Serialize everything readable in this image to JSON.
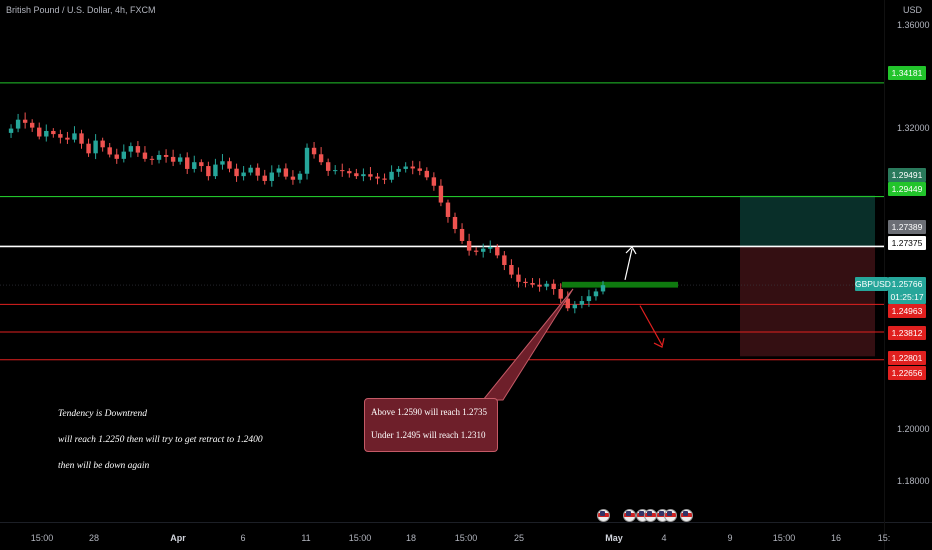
{
  "header": {
    "title": "British Pound / U.S. Dollar, 4h, FXCM"
  },
  "price_axis": {
    "currency": "USD",
    "ticks": [
      "1.36000",
      "1.32000",
      "1.20000",
      "1.18000"
    ]
  },
  "time_axis": {
    "ticks": [
      {
        "label": "15:00",
        "bold": false
      },
      {
        "label": "28",
        "bold": false
      },
      {
        "label": "Apr",
        "bold": true
      },
      {
        "label": "6",
        "bold": false
      },
      {
        "label": "11",
        "bold": false
      },
      {
        "label": "15:00",
        "bold": false
      },
      {
        "label": "18",
        "bold": false
      },
      {
        "label": "15:00",
        "bold": false
      },
      {
        "label": "25",
        "bold": false
      },
      {
        "label": "May",
        "bold": true
      },
      {
        "label": "4",
        "bold": false
      },
      {
        "label": "9",
        "bold": false
      },
      {
        "label": "15:00",
        "bold": false
      },
      {
        "label": "16",
        "bold": false
      },
      {
        "label": "15:",
        "bold": false
      }
    ]
  },
  "price_labels": [
    {
      "text": "1.34181",
      "color": "#22c42b"
    },
    {
      "text": "1.29491",
      "color": "#2a7a5c"
    },
    {
      "text": "1.29449",
      "color": "#22c42b"
    },
    {
      "text": "1.27389",
      "color": "#6b6e75"
    },
    {
      "text": "1.27375",
      "color": "#ffffff"
    },
    {
      "text": "1.25766",
      "color": "#26a69a"
    },
    {
      "text": "01:25:17",
      "color": "#26a69a"
    },
    {
      "text": "1.24963",
      "color": "#e0201f"
    },
    {
      "text": "1.23812",
      "color": "#e0201f"
    },
    {
      "text": "1.22801",
      "color": "#e0201f"
    },
    {
      "text": "1.22656",
      "color": "#e0201f"
    }
  ],
  "symbol_label": "GBPUSD",
  "callout": {
    "line1": "Above 1.2590 will reach 1.2735",
    "line2": "Under 1.2495 will reach 1.2310"
  },
  "notes": {
    "line1": "Tendency is Downtrend",
    "line2": "will reach 1.2250  then will try to get retract to 1.2400",
    "line3": "then will be down again"
  },
  "colors": {
    "background": "#000000",
    "up_candle": "#26a69a",
    "down_candle": "#ef5350",
    "support_line": "#e0201f",
    "resistance_line": "#22c42b",
    "pivot_line": "#ffffff",
    "pivot_zone": "#0f7a0f",
    "target_zone": "#0b3b33",
    "stop_zone": "#3a1114",
    "callout_bg": "#6e1f2a"
  },
  "chart_data": {
    "type": "candlestick",
    "symbol": "GBPUSD",
    "timeframe": "4h",
    "y_unit": "USD",
    "ylim": [
      1.174,
      1.368
    ],
    "last_price": 1.25766,
    "horizontal_levels": [
      1.34181,
      1.29449,
      1.27375,
      1.24963,
      1.23812,
      1.22656
    ],
    "pivot_zone": [
      1.2566,
      1.259
    ],
    "position_box": {
      "entry": 1.2738,
      "target": 1.2949,
      "stop": 1.228
    },
    "arrows": [
      {
        "direction": "up",
        "from": 1.259,
        "to": 1.2735
      },
      {
        "direction": "down",
        "from": 1.2495,
        "to": 1.231
      }
    ],
    "price_path": [
      1.321,
      1.3228,
      1.3265,
      1.3252,
      1.3232,
      1.3195,
      1.3218,
      1.3205,
      1.319,
      1.3182,
      1.3208,
      1.3165,
      1.3125,
      1.3178,
      1.315,
      1.312,
      1.3102,
      1.3132,
      1.3155,
      1.3128,
      1.3102,
      1.3098,
      1.3118,
      1.311,
      1.309,
      1.3108,
      1.306,
      1.3088,
      1.3072,
      1.303,
      1.3078,
      1.3092,
      1.3061,
      1.303,
      1.3045,
      1.3065,
      1.3032,
      1.301,
      1.3045,
      1.3062,
      1.3028,
      1.3015,
      1.304,
      1.3148,
      1.3121,
      1.3088,
      1.3052,
      1.3055,
      1.3051,
      1.3042,
      1.303,
      1.3038,
      1.3028,
      1.302,
      1.3015,
      1.3048,
      1.306,
      1.307,
      1.3062,
      1.3052,
      1.3025,
      1.299,
      1.292,
      1.286,
      1.281,
      1.276,
      1.272,
      1.2715,
      1.2728,
      1.2735,
      1.27,
      1.266,
      1.262,
      1.259,
      1.2585,
      1.2578,
      1.257,
      1.2582,
      1.256,
      1.252,
      1.248,
      1.2495,
      1.251,
      1.253,
      1.255,
      1.2576
    ]
  }
}
